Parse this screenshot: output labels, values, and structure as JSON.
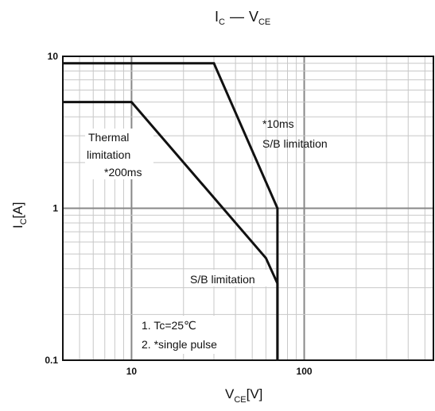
{
  "chart_data": {
    "type": "line",
    "title": "I_C — V_CE",
    "title_parts": {
      "main1": "I",
      "sub1": "C",
      "dash": "—",
      "main2": "V",
      "sub2": "CE"
    },
    "xlabel_parts": {
      "main": "V",
      "sub": "CE",
      "unit": "[V]"
    },
    "ylabel_parts": {
      "main": "I",
      "sub": "C",
      "unit": "[A]"
    },
    "x_scale": "log",
    "y_scale": "log",
    "xlim": [
      4,
      560
    ],
    "ylim": [
      0.1,
      10
    ],
    "grid": true,
    "x_ticks": [
      {
        "value": 10,
        "label": "10"
      },
      {
        "value": 100,
        "label": "100"
      }
    ],
    "y_ticks": [
      {
        "value": 10,
        "label": "10"
      },
      {
        "value": 1,
        "label": "1"
      },
      {
        "value": 0.1,
        "label": "0.1"
      }
    ],
    "series": [
      {
        "id": "ten_ms",
        "points": [
          [
            4,
            9
          ],
          [
            30,
            9
          ],
          [
            70,
            1
          ],
          [
            70,
            0.1
          ]
        ]
      },
      {
        "id": "two_hundred_ms",
        "points": [
          [
            4,
            5
          ],
          [
            10,
            5
          ],
          [
            60,
            0.47
          ],
          [
            70,
            0.32
          ],
          [
            70,
            0.1
          ]
        ]
      }
    ],
    "annotations": [
      {
        "id": "ann-10ms",
        "lines": [
          "*10ms",
          "S/B limitation"
        ]
      },
      {
        "id": "ann-thermal",
        "lines": [
          "Thermal",
          "limitation",
          "*200ms"
        ]
      },
      {
        "id": "ann-sb",
        "lines": [
          "S/B limitation"
        ]
      },
      {
        "id": "ann-notes",
        "lines": [
          "1. Tc=25℃",
          "2. *single pulse"
        ]
      }
    ],
    "colors": {
      "line": "#111111",
      "grid_major": "#888888",
      "grid_minor": "#c8c8c8",
      "frame": "#111111"
    }
  }
}
